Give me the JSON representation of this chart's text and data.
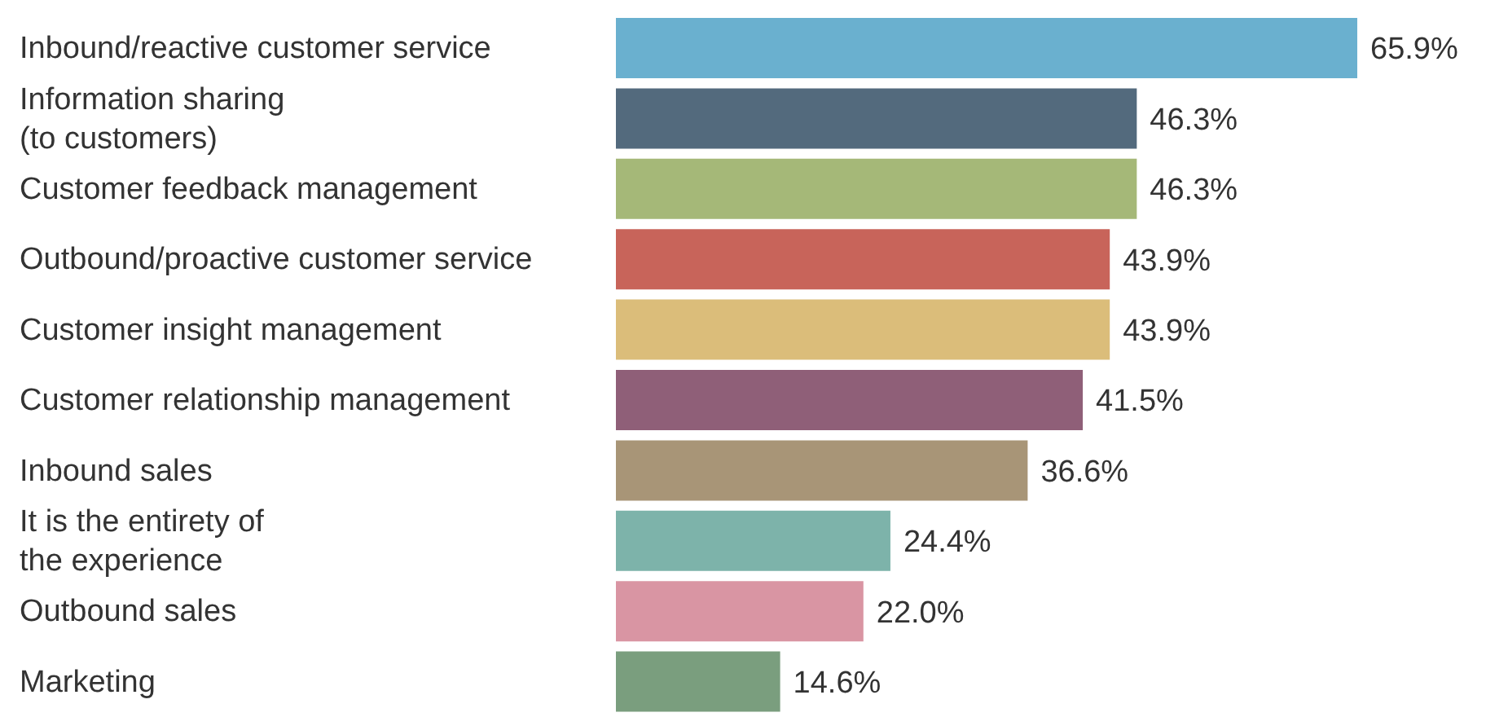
{
  "chart_data": {
    "type": "bar",
    "orientation": "horizontal",
    "categories": [
      "Inbound/reactive customer service",
      "Information sharing\n(to customers)",
      "Customer feedback management",
      "Outbound/proactive customer service",
      "Customer insight management",
      "Customer relationship management",
      "Inbound sales",
      "It is the entirety of\nthe experience",
      "Outbound sales",
      "Marketing"
    ],
    "values": [
      65.9,
      46.3,
      46.3,
      43.9,
      43.9,
      41.5,
      36.6,
      24.4,
      22.0,
      14.6
    ],
    "value_labels": [
      "65.9%",
      "46.3%",
      "46.3%",
      "43.9%",
      "43.9%",
      "41.5%",
      "36.6%",
      "24.4%",
      "22.0%",
      "14.6%"
    ],
    "colors": [
      "#6ab0cf",
      "#536a7d",
      "#a5b878",
      "#c8645a",
      "#dbbd7a",
      "#8f5f78",
      "#a89577",
      "#7db3aa",
      "#d995a3",
      "#7a9e7e"
    ],
    "grid": false,
    "legend": false
  }
}
